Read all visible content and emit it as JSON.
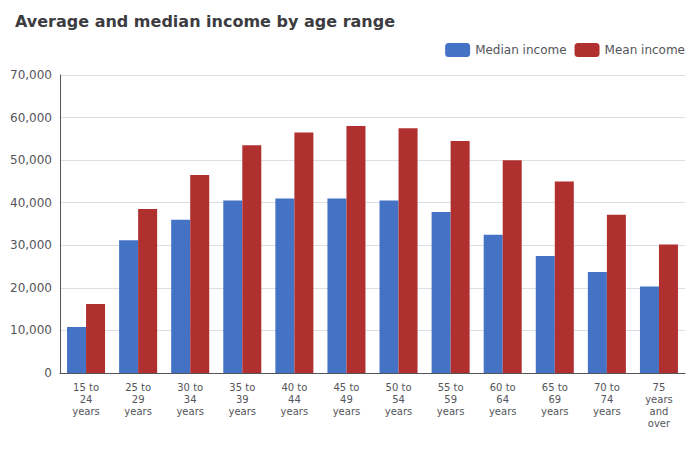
{
  "chart_data": {
    "type": "bar",
    "title": "Average and median income by age range",
    "categories": [
      "15 to\n24\nyears",
      "25 to\n29\nyears",
      "30 to\n34\nyears",
      "35 to\n39\nyears",
      "40 to\n44\nyears",
      "45 to\n49\nyears",
      "50 to\n54\nyears",
      "55 to\n59\nyears",
      "60 to\n64\nyears",
      "65 to\n69\nyears",
      "70 to\n74\nyears",
      "75\nyears\nand\nover"
    ],
    "series": [
      {
        "name": "Median income",
        "color": "#4472C4",
        "values": [
          10800,
          31200,
          36000,
          40500,
          41000,
          41000,
          40500,
          37800,
          32500,
          27500,
          23700,
          20300
        ]
      },
      {
        "name": "Mean income",
        "color": "#B03030",
        "values": [
          16200,
          38500,
          46500,
          53500,
          56500,
          58000,
          57500,
          54500,
          50000,
          45000,
          37200,
          30200
        ]
      }
    ],
    "ylim": [
      0,
      70000
    ],
    "yticks": [
      0,
      {
        "value": 10000,
        "label": "10,000"
      },
      {
        "value": 20000,
        "label": "20,000"
      },
      {
        "value": 30000,
        "label": "30,000"
      },
      {
        "value": 40000,
        "label": "40,000"
      },
      {
        "value": 50000,
        "label": "50,000"
      },
      {
        "value": 60000,
        "label": "60,000"
      },
      {
        "value": 70000,
        "label": "70,000"
      }
    ],
    "grid": true,
    "legend": "upper right"
  }
}
